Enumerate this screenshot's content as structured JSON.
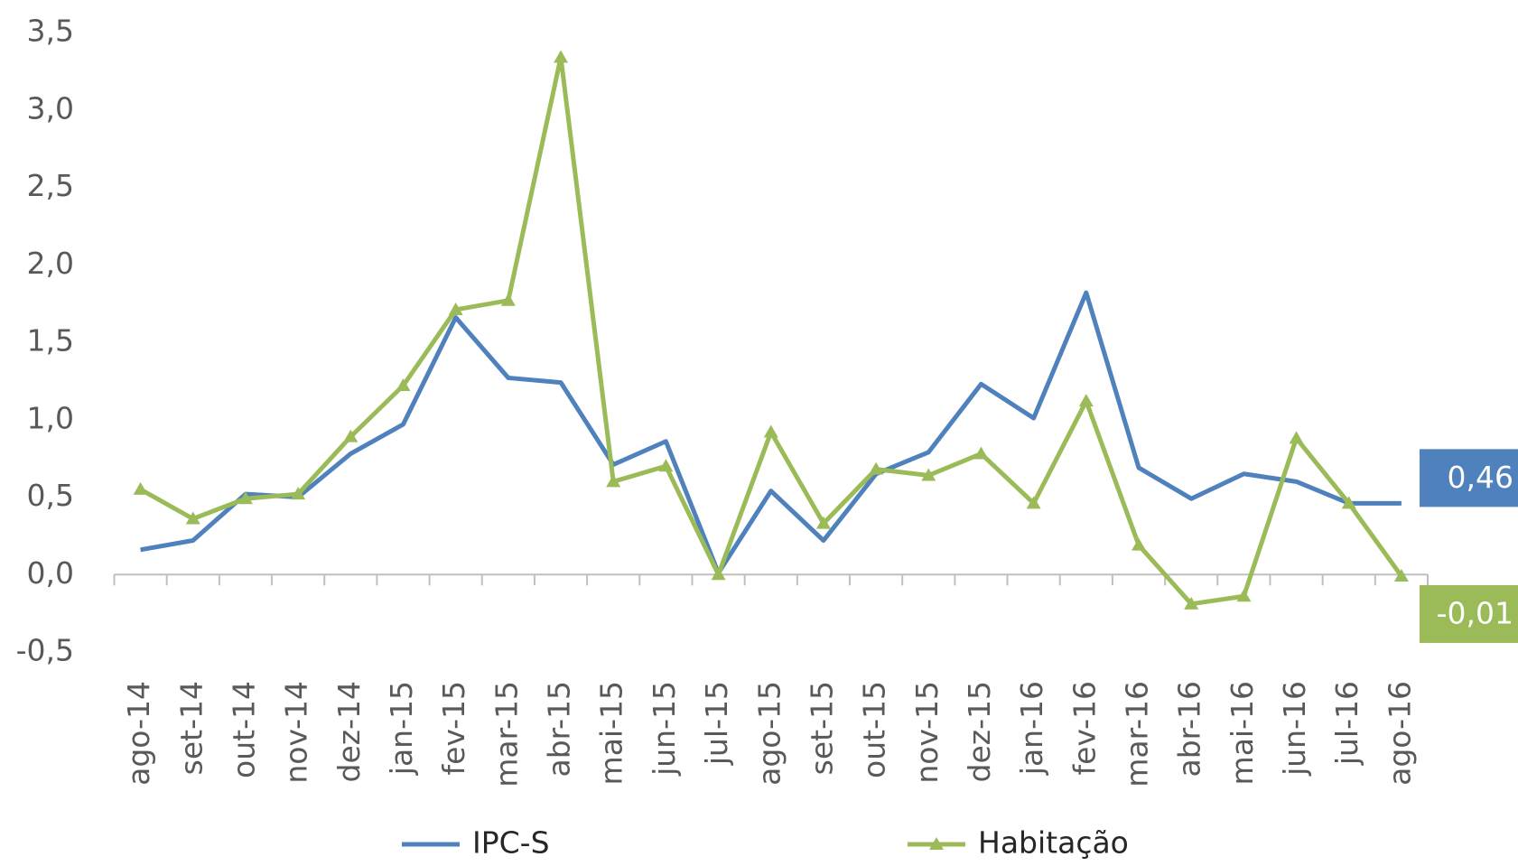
{
  "chart_data": {
    "type": "line",
    "categories": [
      "ago-14",
      "set-14",
      "out-14",
      "nov-14",
      "dez-14",
      "jan-15",
      "fev-15",
      "mar-15",
      "abr-15",
      "mai-15",
      "jun-15",
      "jul-15",
      "ago-15",
      "set-15",
      "out-15",
      "nov-15",
      "dez-15",
      "jan-16",
      "fev-16",
      "mar-16",
      "abr-16",
      "mai-16",
      "jun-16",
      "jul-16",
      "ago-16"
    ],
    "series": [
      {
        "name": "IPC-S",
        "color": "#4f81bd",
        "marker": "none",
        "values": [
          0.16,
          0.22,
          0.52,
          0.5,
          0.78,
          0.97,
          1.66,
          1.27,
          1.24,
          0.71,
          0.86,
          0.01,
          0.54,
          0.22,
          0.65,
          0.79,
          1.23,
          1.01,
          1.82,
          0.69,
          0.49,
          0.65,
          0.6,
          0.46,
          0.46
        ],
        "value_labels": [
          null,
          null,
          null,
          null,
          null,
          null,
          null,
          null,
          null,
          null,
          null,
          null,
          null,
          null,
          null,
          null,
          null,
          null,
          null,
          null,
          null,
          null,
          null,
          null,
          "0,46"
        ]
      },
      {
        "name": "Habitação",
        "color": "#9bbb59",
        "marker": "triangle",
        "values": [
          0.55,
          0.36,
          0.49,
          0.52,
          0.89,
          1.22,
          1.71,
          1.77,
          3.34,
          0.6,
          0.7,
          0.0,
          0.92,
          0.33,
          0.68,
          0.64,
          0.78,
          0.46,
          1.12,
          0.19,
          -0.19,
          -0.14,
          0.88,
          0.46,
          -0.01
        ],
        "value_labels": [
          null,
          null,
          null,
          null,
          null,
          null,
          null,
          null,
          null,
          null,
          null,
          null,
          null,
          null,
          null,
          null,
          null,
          null,
          null,
          null,
          null,
          null,
          null,
          null,
          "-0,01"
        ]
      }
    ],
    "ylim": [
      -0.5,
      3.5
    ],
    "yticks": [
      {
        "value": -0.5,
        "label": "-0,5"
      },
      {
        "value": 0,
        "label": "0,0"
      },
      {
        "value": 0.5,
        "label": "0,5"
      },
      {
        "value": 1,
        "label": "1,0"
      },
      {
        "value": 1.5,
        "label": "1,5"
      },
      {
        "value": 2,
        "label": "2,0"
      },
      {
        "value": 2.5,
        "label": "2,5"
      },
      {
        "value": 3,
        "label": "3,0"
      },
      {
        "value": 3.5,
        "label": "3,5"
      }
    ],
    "grid": false,
    "legend": "bottom"
  }
}
